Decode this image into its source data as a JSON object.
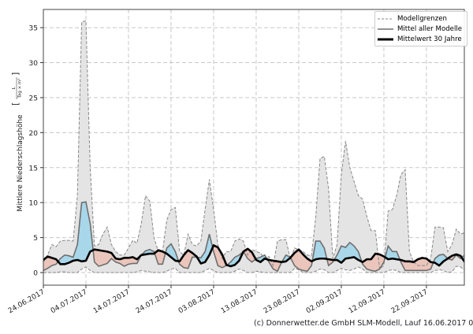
{
  "chart_data": {
    "type": "area",
    "x_start": "24.06.2017",
    "x_step": "1 day",
    "xlim": [
      0,
      98.9
    ],
    "ylim": [
      -1.8,
      37.6
    ],
    "ylabel": "Mittlere Niederschlagshöhe",
    "ylabel_unit_num": "L",
    "ylabel_unit_den": "Tag × m²",
    "yticks": [
      0,
      5,
      10,
      15,
      20,
      25,
      30,
      35
    ],
    "xticks": [
      {
        "day": 0,
        "label": "24.06.2017"
      },
      {
        "day": 10,
        "label": "04.07.2017"
      },
      {
        "day": 20,
        "label": "14.07.2017"
      },
      {
        "day": 30,
        "label": "24.07.2017"
      },
      {
        "day": 40,
        "label": "03.08.2017"
      },
      {
        "day": 50,
        "label": "13.08.2017"
      },
      {
        "day": 60,
        "label": "23.08.2017"
      },
      {
        "day": 70,
        "label": "02.09.2017"
      },
      {
        "day": 80,
        "label": "12.09.2017"
      },
      {
        "day": 90,
        "label": "22.09.2017"
      }
    ],
    "grid": true,
    "legend_position": "top-right",
    "legend": [
      "Modellgrenzen",
      "Mittel aller Modelle",
      "Mittelwert 30 Jahre"
    ],
    "series": [
      {
        "name": "Modellgrenzen max",
        "values": [
          1.5,
          2.5,
          4,
          3.7,
          4.5,
          4.6,
          4.6,
          4.5,
          11,
          35.8,
          36,
          15,
          3.8,
          4,
          5.5,
          6.5,
          4,
          3,
          2.5,
          2.5,
          3.5,
          4.6,
          4.2,
          7,
          11,
          10.2,
          5,
          3,
          3,
          7.5,
          9,
          9.3,
          3,
          2.5,
          5.5,
          4,
          3.8,
          4.5,
          9,
          13.3,
          9,
          4,
          2,
          3,
          3,
          4.5,
          4.8,
          4.5,
          2.5,
          3.3,
          3,
          2.8,
          2,
          2.3,
          1,
          4.5,
          4.7,
          4.7,
          2,
          3.5,
          3.3,
          3,
          2.5,
          2.4,
          8,
          16.3,
          16.6,
          12,
          2,
          4,
          14,
          18.8,
          15,
          13,
          11,
          10.5,
          8,
          6,
          6,
          0.5,
          1,
          8.8,
          9,
          11,
          14,
          14.7,
          3,
          1.5,
          1,
          1,
          1,
          2,
          6.5,
          6.5,
          6.4,
          3,
          4,
          6.2,
          5.5,
          5.7
        ]
      },
      {
        "name": "Modellgrenzen min",
        "values": [
          0,
          0,
          0,
          0,
          0.1,
          0.1,
          0,
          0,
          0,
          0.5,
          0.8,
          0.3,
          0,
          0,
          0,
          0,
          0,
          0,
          0,
          0,
          0,
          0,
          0.1,
          0.3,
          0.2,
          0.1,
          0,
          0,
          0,
          0.2,
          0.5,
          0.6,
          0,
          0,
          0,
          0,
          0,
          0,
          0.3,
          0.6,
          0.3,
          0,
          0,
          0,
          0,
          0.2,
          0.5,
          0.3,
          0,
          0,
          0.2,
          0.1,
          0,
          0,
          0,
          0,
          0,
          0,
          0,
          0.6,
          0.4,
          0,
          0,
          0,
          0.2,
          0.5,
          0.4,
          0,
          0,
          0.3,
          0.6,
          0.4,
          0.3,
          0.5,
          0.8,
          0.5,
          0,
          0,
          0,
          0,
          0,
          0.3,
          0.4,
          0.3,
          0,
          0,
          0,
          0,
          0,
          0,
          0,
          0,
          0.3,
          0.4,
          0.3,
          0,
          0.1,
          0.9,
          0.8,
          0.3
        ]
      },
      {
        "name": "Mittel aller Modelle",
        "values": [
          0.3,
          0.6,
          1,
          1.2,
          2,
          2.5,
          2.4,
          2.2,
          4,
          10,
          10.1,
          7,
          1.5,
          0.9,
          1.1,
          1.3,
          2,
          1.5,
          1.3,
          0.9,
          1.2,
          1.3,
          1.3,
          2.5,
          3.1,
          3.3,
          3,
          1.2,
          1.2,
          3.5,
          4.1,
          3,
          1.2,
          0.7,
          0.6,
          2.2,
          2.2,
          2.1,
          3,
          5.5,
          3,
          1,
          0.7,
          1,
          1.5,
          2.2,
          2.5,
          3,
          2,
          1.5,
          2,
          2.2,
          2.5,
          1.5,
          0.5,
          0.2,
          1.5,
          2.5,
          2.2,
          1,
          0.5,
          0.3,
          0.2,
          1,
          4.5,
          4.5,
          3.5,
          1,
          1.5,
          2.5,
          3.8,
          3.6,
          4.3,
          3.8,
          3,
          1.2,
          0.5,
          0.3,
          0.2,
          0.5,
          1.5,
          3.8,
          3,
          3,
          1.5,
          0.3,
          0.3,
          0.3,
          0.3,
          0.3,
          0.3,
          0.5,
          2,
          2.5,
          2.6,
          2,
          1.8,
          2.5,
          2,
          2.5
        ]
      },
      {
        "name": "Mittelwert 30 Jahre",
        "values": [
          1.8,
          2.3,
          2.1,
          1.9,
          1.2,
          1.2,
          1.4,
          1.7,
          1.8,
          1.6,
          1.7,
          3,
          3.3,
          3.2,
          3.1,
          3,
          2.8,
          2,
          1.9,
          2.1,
          2.1,
          2.2,
          1.9,
          2.5,
          2.6,
          2.7,
          2.7,
          3.2,
          3,
          2.7,
          2.2,
          1.7,
          1.6,
          2.5,
          3.2,
          2.8,
          2.3,
          1.3,
          1.5,
          2.5,
          3.9,
          3.6,
          2.6,
          1.1,
          0.9,
          1.1,
          1.7,
          3,
          3.4,
          2.9,
          1.8,
          1.5,
          2,
          1.8,
          1.7,
          1.6,
          1.5,
          1.6,
          2.1,
          2.8,
          3.3,
          2.6,
          2,
          1.6,
          1.9,
          2,
          2,
          1.9,
          1.8,
          1.8,
          1.4,
          2,
          2.1,
          2.2,
          1.8,
          1.5,
          1.9,
          1.9,
          2.7,
          2.6,
          2.3,
          1.9,
          2,
          1.9,
          1.8,
          1.6,
          1.6,
          1.5,
          1.9,
          2.1,
          2,
          1.5,
          1.4,
          1,
          1.6,
          2,
          2.4,
          2.6,
          2.4,
          1.5
        ]
      }
    ],
    "colors": {
      "above": "#a8d7ea",
      "below": "#ebc5bb",
      "range": "#e4e4e4",
      "bounds": "#888888",
      "models": "#6e6e6e",
      "climate": "#000000"
    }
  },
  "footer": "(c) Donnerwetter.de GmbH SLM-Modell, Lauf 16.06.2017 00 Uhr"
}
